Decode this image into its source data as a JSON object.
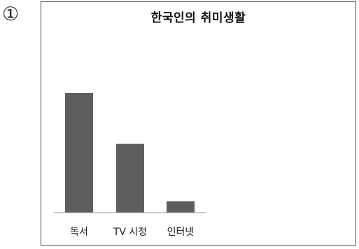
{
  "figure": {
    "marker": "①"
  },
  "chart_data": {
    "type": "bar",
    "title": "한국인의 취미생활",
    "categories": [
      "독서",
      "TV 시청",
      "인터넷"
    ],
    "values": [
      100,
      57.5,
      9.5
    ],
    "ylim": [
      0,
      100
    ],
    "xlabel": "",
    "ylabel": "",
    "grid": false,
    "legend": "none",
    "bar_color": "#5e5e5e",
    "axis_color": "#9a9a9a"
  }
}
